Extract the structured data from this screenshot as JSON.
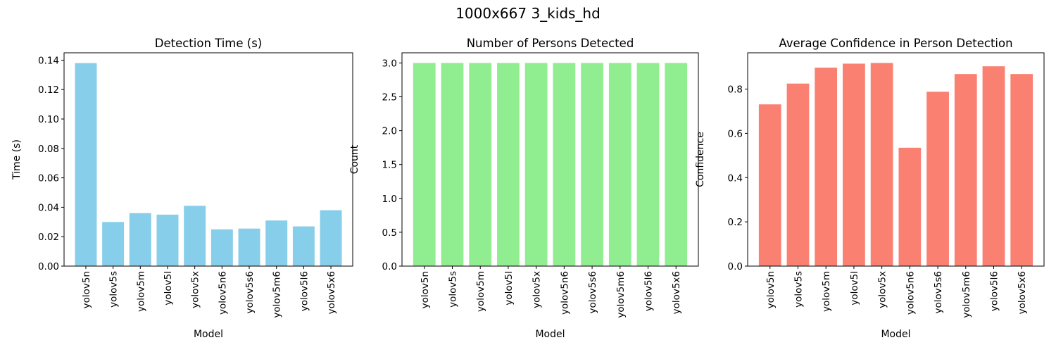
{
  "figure_title": "1000x667 3_kids_hd",
  "chart_data": [
    {
      "type": "bar",
      "title": "Detection Time (s)",
      "xlabel": "Model",
      "ylabel": "Time (s)",
      "categories": [
        "yolov5n",
        "yolov5s",
        "yolov5m",
        "yolov5l",
        "yolov5x",
        "yolov5n6",
        "yolov5s6",
        "yolov5m6",
        "yolov5l6",
        "yolov5x6"
      ],
      "values": [
        0.138,
        0.03,
        0.036,
        0.035,
        0.041,
        0.025,
        0.0255,
        0.031,
        0.027,
        0.038
      ],
      "ylim": [
        0,
        0.145
      ],
      "yticks": [
        0.0,
        0.02,
        0.04,
        0.06,
        0.08,
        0.1,
        0.12,
        0.14
      ],
      "ytick_labels": [
        "0.00",
        "0.02",
        "0.04",
        "0.06",
        "0.08",
        "0.10",
        "0.12",
        "0.14"
      ],
      "color": "#87CEEB",
      "grid": false
    },
    {
      "type": "bar",
      "title": "Number of Persons Detected",
      "xlabel": "Model",
      "ylabel": "Count",
      "categories": [
        "yolov5n",
        "yolov5s",
        "yolov5m",
        "yolov5l",
        "yolov5x",
        "yolov5n6",
        "yolov5s6",
        "yolov5m6",
        "yolov5l6",
        "yolov5x6"
      ],
      "values": [
        3,
        3,
        3,
        3,
        3,
        3,
        3,
        3,
        3,
        3
      ],
      "ylim": [
        0,
        3.15
      ],
      "yticks": [
        0.0,
        0.5,
        1.0,
        1.5,
        2.0,
        2.5,
        3.0
      ],
      "ytick_labels": [
        "0.0",
        "0.5",
        "1.0",
        "1.5",
        "2.0",
        "2.5",
        "3.0"
      ],
      "color": "#90EE90",
      "grid": false
    },
    {
      "type": "bar",
      "title": "Average Confidence in Person Detection",
      "xlabel": "Model",
      "ylabel": "Confidence",
      "categories": [
        "yolov5n",
        "yolov5s",
        "yolov5m",
        "yolov5l",
        "yolov5x",
        "yolov5n6",
        "yolov5s6",
        "yolov5m6",
        "yolov5l6",
        "yolov5x6"
      ],
      "values": [
        0.731,
        0.825,
        0.897,
        0.915,
        0.918,
        0.535,
        0.788,
        0.868,
        0.903,
        0.868
      ],
      "ylim": [
        0,
        0.964
      ],
      "yticks": [
        0.0,
        0.2,
        0.4,
        0.6,
        0.8
      ],
      "ytick_labels": [
        "0.0",
        "0.2",
        "0.4",
        "0.6",
        "0.8"
      ],
      "color": "#FA8072",
      "grid": false
    }
  ]
}
